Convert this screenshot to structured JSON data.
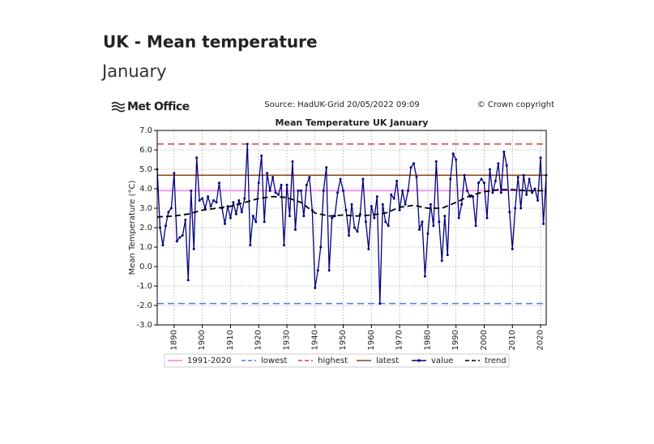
{
  "header": {
    "title": "UK - Mean temperature",
    "subtitle": "January"
  },
  "chart_data": {
    "type": "line",
    "logo": "Met Office",
    "source": "Source: HadUK-Grid 20/05/2022 09:09",
    "copyright": "© Crown copyright",
    "title": "Mean Temperature UK January",
    "ylabel": "Mean Temperature (°C)",
    "xlim": [
      1884,
      2022
    ],
    "xticks": [
      1890,
      1900,
      1910,
      1920,
      1930,
      1940,
      1950,
      1960,
      1970,
      1980,
      1990,
      2000,
      2010,
      2020
    ],
    "ylim": [
      -3,
      7
    ],
    "yticks": [
      {
        "value": 7,
        "label": "7.0"
      },
      {
        "value": 6,
        "label": "6.0"
      },
      {
        "value": 5,
        "label": "5.0"
      },
      {
        "value": 4,
        "label": "4.0"
      },
      {
        "value": 3,
        "label": "3.0"
      },
      {
        "value": 2,
        "label": "2.0"
      },
      {
        "value": 1,
        "label": "1.0"
      },
      {
        "value": 0,
        "label": "0.0"
      },
      {
        "value": -1,
        "label": "-1.0"
      },
      {
        "value": -2,
        "label": "-2.0"
      },
      {
        "value": -3,
        "label": "-3.0"
      }
    ],
    "grid": true,
    "reference_lines": [
      {
        "name": "1991-2020",
        "color": "#ee82ee",
        "value": 3.9,
        "dashed": false
      },
      {
        "name": "lowest",
        "color": "#4a7fe0",
        "value": -1.9,
        "dashed": true
      },
      {
        "name": "highest",
        "color": "#e03c3c",
        "value": 6.3,
        "dashed": true
      },
      {
        "name": "latest",
        "color": "#8b4513",
        "value": 4.7,
        "dashed": false
      }
    ],
    "x": [
      1884,
      1885,
      1886,
      1887,
      1888,
      1889,
      1890,
      1891,
      1892,
      1893,
      1894,
      1895,
      1896,
      1897,
      1898,
      1899,
      1900,
      1901,
      1902,
      1903,
      1904,
      1905,
      1906,
      1907,
      1908,
      1909,
      1910,
      1911,
      1912,
      1913,
      1914,
      1915,
      1916,
      1917,
      1918,
      1919,
      1920,
      1921,
      1922,
      1923,
      1924,
      1925,
      1926,
      1927,
      1928,
      1929,
      1930,
      1931,
      1932,
      1933,
      1934,
      1935,
      1936,
      1937,
      1938,
      1939,
      1940,
      1941,
      1942,
      1943,
      1944,
      1945,
      1946,
      1947,
      1948,
      1949,
      1950,
      1951,
      1952,
      1953,
      1954,
      1955,
      1956,
      1957,
      1958,
      1959,
      1960,
      1961,
      1962,
      1963,
      1964,
      1965,
      1966,
      1967,
      1968,
      1969,
      1970,
      1971,
      1972,
      1973,
      1974,
      1975,
      1976,
      1977,
      1978,
      1979,
      1980,
      1981,
      1982,
      1983,
      1984,
      1985,
      1986,
      1987,
      1988,
      1989,
      1990,
      1991,
      1992,
      1993,
      1994,
      1995,
      1996,
      1997,
      1998,
      1999,
      2000,
      2001,
      2002,
      2003,
      2004,
      2005,
      2006,
      2007,
      2008,
      2009,
      2010,
      2011,
      2012,
      2013,
      2014,
      2015,
      2016,
      2017,
      2018,
      2019,
      2020,
      2021,
      2022
    ],
    "series": [
      {
        "name": "value",
        "color": "#00007f",
        "values": [
          5.0,
          2.0,
          1.1,
          2.1,
          2.8,
          3.0,
          4.8,
          1.3,
          1.5,
          1.6,
          2.4,
          -0.7,
          3.9,
          0.9,
          5.6,
          3.4,
          3.5,
          3.0,
          3.6,
          3.1,
          3.4,
          3.3,
          4.3,
          3.0,
          2.2,
          3.1,
          2.5,
          3.3,
          2.7,
          3.4,
          2.8,
          3.5,
          6.3,
          1.1,
          2.6,
          2.3,
          4.3,
          5.7,
          2.3,
          4.8,
          3.9,
          4.6,
          3.8,
          3.7,
          4.2,
          1.1,
          4.2,
          2.6,
          5.4,
          1.9,
          3.9,
          3.9,
          2.6,
          4.2,
          4.6,
          2.9,
          -1.1,
          -0.2,
          1.0,
          3.9,
          5.1,
          -0.2,
          2.5,
          2.6,
          3.8,
          4.5,
          3.9,
          2.9,
          1.6,
          3.2,
          2.0,
          1.8,
          2.7,
          4.5,
          2.3,
          0.9,
          3.1,
          2.5,
          3.6,
          -1.9,
          3.2,
          2.3,
          2.1,
          3.7,
          3.5,
          4.4,
          2.9,
          3.9,
          3.2,
          3.9,
          5.1,
          5.3,
          4.6,
          1.9,
          2.3,
          -0.5,
          1.7,
          3.2,
          2.1,
          5.4,
          2.3,
          0.3,
          2.6,
          0.6,
          4.5,
          5.8,
          5.5,
          2.5,
          3.2,
          4.7,
          3.9,
          3.6,
          3.6,
          2.1,
          4.3,
          4.5,
          4.3,
          2.5,
          5.0,
          3.8,
          4.4,
          5.3,
          3.8,
          5.9,
          5.2,
          2.8,
          0.9,
          3.0,
          4.6,
          3.0,
          4.7,
          3.7,
          4.5,
          3.8,
          4.0,
          3.4,
          5.6,
          2.2,
          4.7
        ]
      },
      {
        "name": "trend",
        "color": "#000000",
        "x": [
          1884,
          1890,
          1895,
          1900,
          1905,
          1910,
          1915,
          1920,
          1925,
          1930,
          1935,
          1940,
          1945,
          1950,
          1955,
          1960,
          1965,
          1970,
          1975,
          1980,
          1985,
          1990,
          1995,
          2000,
          2005,
          2010,
          2015,
          2020,
          2022
        ],
        "values": [
          2.55,
          2.6,
          2.7,
          2.9,
          3.0,
          3.1,
          3.3,
          3.5,
          3.6,
          3.55,
          3.3,
          2.75,
          2.6,
          2.65,
          2.6,
          2.65,
          2.75,
          3.05,
          3.15,
          3.0,
          3.0,
          3.3,
          3.65,
          3.85,
          3.95,
          3.95,
          3.9,
          3.9,
          3.9
        ]
      }
    ]
  }
}
